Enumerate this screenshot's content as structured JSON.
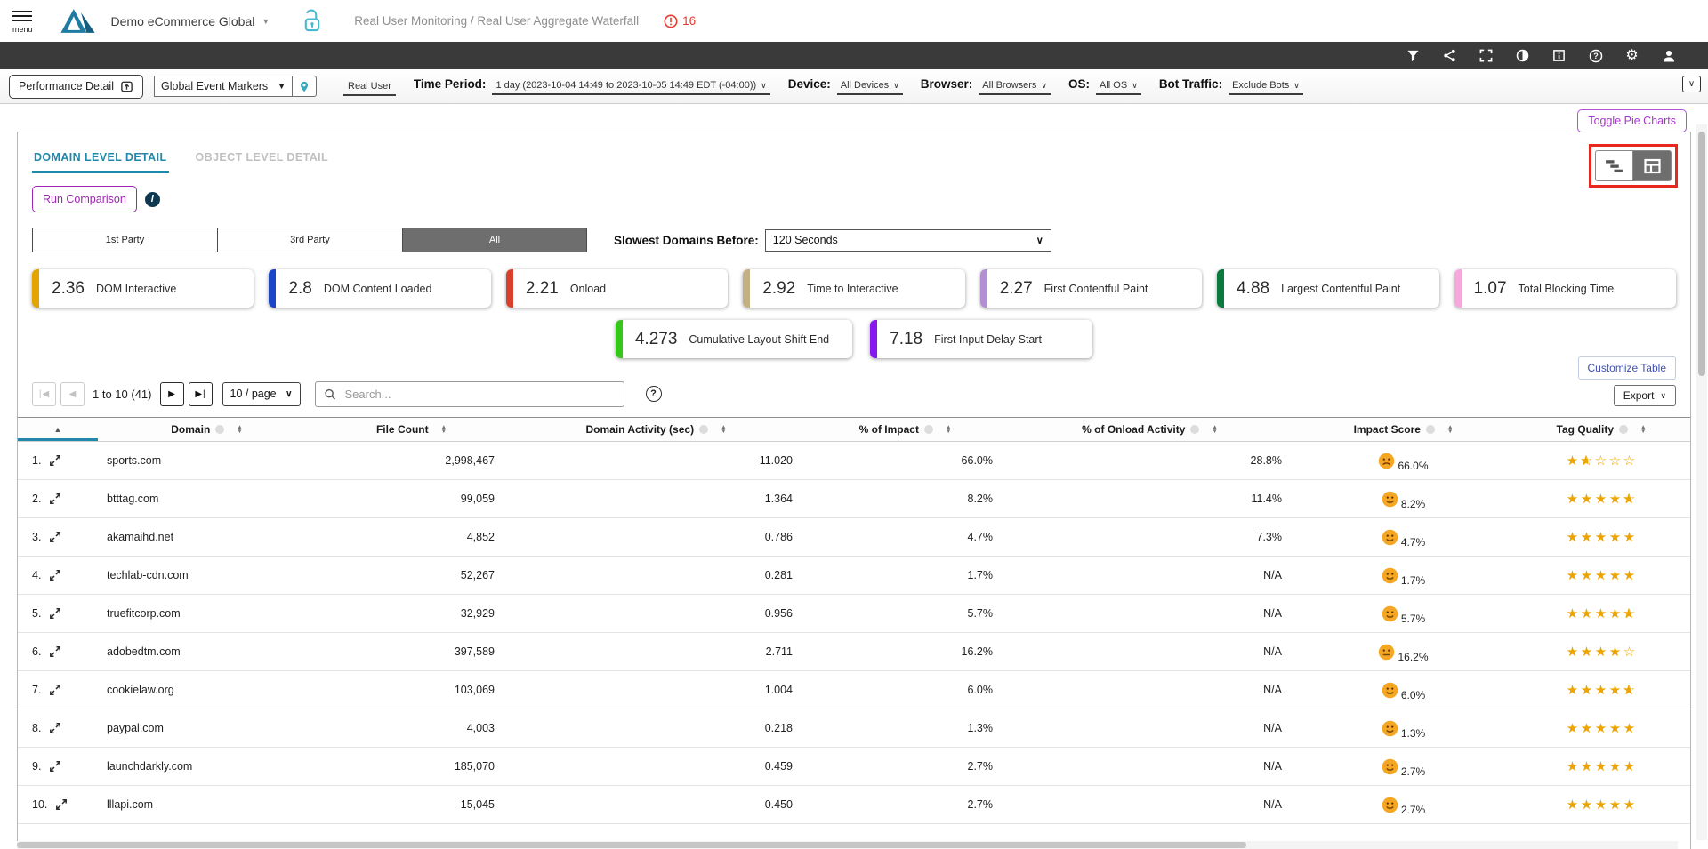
{
  "topbar": {
    "menu_label": "menu",
    "account": "Demo eCommerce Global",
    "breadcrumb": "Real User Monitoring / Real User Aggregate Waterfall",
    "alert_count": "16"
  },
  "dark_toolbar_icons": [
    "filter-icon",
    "share-icon",
    "fullscreen-icon",
    "contrast-icon",
    "info-panel-icon",
    "help-icon",
    "settings-icon",
    "user-icon"
  ],
  "filterbar": {
    "performance_detail_label": "Performance Detail",
    "event_markers_value": "Global Event Markers",
    "real_user_label": "Real User",
    "time_period_label": "Time Period:",
    "time_period_value": "1 day (2023-10-04 14:49 to 2023-10-05 14:49 EDT (-04:00))",
    "device_label": "Device:",
    "device_value": "All Devices",
    "browser_label": "Browser:",
    "browser_value": "All Browsers",
    "os_label": "OS:",
    "os_value": "All OS",
    "bot_label": "Bot Traffic:",
    "bot_value": "Exclude Bots"
  },
  "toggle_pie_charts_label": "Toggle Pie Charts",
  "panel": {
    "tabs": [
      {
        "label": "DOMAIN LEVEL DETAIL",
        "active": true
      },
      {
        "label": "OBJECT LEVEL DETAIL",
        "active": false
      }
    ],
    "run_comparison_label": "Run Comparison",
    "party_toggle": [
      {
        "label": "1st Party",
        "active": false
      },
      {
        "label": "3rd Party",
        "active": false
      },
      {
        "label": "All",
        "active": true
      }
    ],
    "slowest_domains_label": "Slowest Domains Before:",
    "slowest_domains_value": "120 Seconds",
    "metrics_row1": [
      {
        "value": "2.36",
        "label": "DOM Interactive",
        "color": "#e3a400"
      },
      {
        "value": "2.8",
        "label": "DOM Content Loaded",
        "color": "#1c46c8"
      },
      {
        "value": "2.21",
        "label": "Onload",
        "color": "#d8402c"
      },
      {
        "value": "2.92",
        "label": "Time to Interactive",
        "color": "#c4b183"
      },
      {
        "value": "2.27",
        "label": "First Contentful Paint",
        "color": "#b18fd0"
      },
      {
        "value": "4.88",
        "label": "Largest Contentful Paint",
        "color": "#0b7a3e"
      },
      {
        "value": "1.07",
        "label": "Total Blocking Time",
        "color": "#f6a8dc"
      }
    ],
    "metrics_row2": [
      {
        "value": "4.273",
        "label": "Cumulative Layout Shift End",
        "color": "#35c71a"
      },
      {
        "value": "7.18",
        "label": "First Input Delay Start",
        "color": "#8818f0"
      }
    ],
    "toolbar": {
      "page_info": "1 to 10 (41)",
      "page_size": "10 / page",
      "search_placeholder": "Search...",
      "customize_table_label": "Customize Table",
      "export_label": "Export"
    },
    "table": {
      "columns": [
        "Domain",
        "File Count",
        "Domain Activity (sec)",
        "% of Impact",
        "% of Onload Activity",
        "Impact Score",
        "Tag Quality"
      ],
      "rows": [
        {
          "num": "1.",
          "domain": "sports.com",
          "file_count": "2,998,467",
          "activity": "11.020",
          "impact": "66.0%",
          "onload": "28.8%",
          "impact_score": "66.0%",
          "mood": "sad",
          "stars": 1.5
        },
        {
          "num": "2.",
          "domain": "btttag.com",
          "file_count": "99,059",
          "activity": "1.364",
          "impact": "8.2%",
          "onload": "11.4%",
          "impact_score": "8.2%",
          "mood": "happy",
          "stars": 4.5
        },
        {
          "num": "3.",
          "domain": "akamaihd.net",
          "file_count": "4,852",
          "activity": "0.786",
          "impact": "4.7%",
          "onload": "7.3%",
          "impact_score": "4.7%",
          "mood": "happy",
          "stars": 5
        },
        {
          "num": "4.",
          "domain": "techlab-cdn.com",
          "file_count": "52,267",
          "activity": "0.281",
          "impact": "1.7%",
          "onload": "N/A",
          "impact_score": "1.7%",
          "mood": "happy",
          "stars": 5
        },
        {
          "num": "5.",
          "domain": "truefitcorp.com",
          "file_count": "32,929",
          "activity": "0.956",
          "impact": "5.7%",
          "onload": "N/A",
          "impact_score": "5.7%",
          "mood": "happy",
          "stars": 4.5
        },
        {
          "num": "6.",
          "domain": "adobedtm.com",
          "file_count": "397,589",
          "activity": "2.711",
          "impact": "16.2%",
          "onload": "N/A",
          "impact_score": "16.2%",
          "mood": "neutral",
          "stars": 4
        },
        {
          "num": "7.",
          "domain": "cookielaw.org",
          "file_count": "103,069",
          "activity": "1.004",
          "impact": "6.0%",
          "onload": "N/A",
          "impact_score": "6.0%",
          "mood": "happy",
          "stars": 4.5
        },
        {
          "num": "8.",
          "domain": "paypal.com",
          "file_count": "4,003",
          "activity": "0.218",
          "impact": "1.3%",
          "onload": "N/A",
          "impact_score": "1.3%",
          "mood": "happy",
          "stars": 5
        },
        {
          "num": "9.",
          "domain": "launchdarkly.com",
          "file_count": "185,070",
          "activity": "0.459",
          "impact": "2.7%",
          "onload": "N/A",
          "impact_score": "2.7%",
          "mood": "happy",
          "stars": 5
        },
        {
          "num": "10.",
          "domain": "lllapi.com",
          "file_count": "15,045",
          "activity": "0.450",
          "impact": "2.7%",
          "onload": "N/A",
          "impact_score": "2.7%",
          "mood": "happy",
          "stars": 5
        }
      ]
    }
  },
  "colors": {
    "accent_blue": "#2187ab",
    "purple": "#9c27b0",
    "red_highlight": "#e8281e",
    "star_gold": "#eca400",
    "emoji_orange": "#f5a623"
  }
}
